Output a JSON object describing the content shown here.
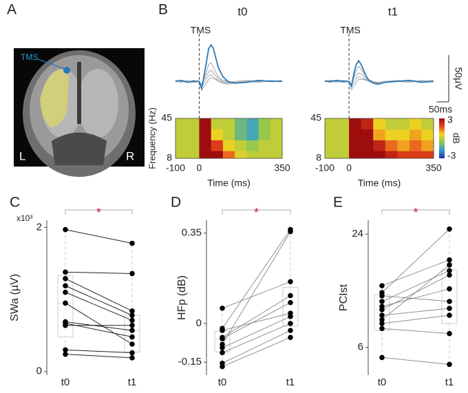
{
  "chart_data": [
    {
      "type": "image",
      "panel": "A",
      "annotation": "TMS",
      "labels": [
        "L",
        "R"
      ]
    },
    {
      "type": "line",
      "panel": "B",
      "title": "t0",
      "annotation": "TMS",
      "annotation_x": 0,
      "x": [
        -100,
        -75,
        -50,
        -25,
        0,
        10,
        20,
        30,
        40,
        50,
        60,
        70,
        80,
        100,
        120,
        150,
        200,
        250,
        300,
        350
      ],
      "xlim": [
        -100,
        350
      ],
      "ylim": [
        -30,
        45
      ],
      "series": [
        {
          "color": "#a8a8a8",
          "values": [
            1,
            0,
            0,
            -1,
            0,
            -10,
            -6,
            -2,
            2,
            4,
            3,
            2,
            0,
            -2,
            -3,
            -2,
            -1,
            0,
            0,
            1
          ]
        },
        {
          "color": "#a8a8a8",
          "values": [
            0,
            0,
            -1,
            1,
            0,
            -6,
            -2,
            3,
            6,
            7,
            5,
            3,
            1,
            -1,
            -2,
            -1,
            0,
            -1,
            1,
            0
          ]
        },
        {
          "color": "#a8a8a8",
          "values": [
            0,
            -1,
            1,
            0,
            0,
            -4,
            2,
            6,
            10,
            12,
            9,
            6,
            3,
            0,
            -1,
            0,
            1,
            0,
            0,
            0
          ]
        },
        {
          "color": "#a8a8a8",
          "values": [
            0,
            1,
            0,
            -1,
            0,
            -3,
            3,
            10,
            18,
            20,
            15,
            10,
            5,
            1,
            0,
            -1,
            0,
            1,
            0,
            0
          ]
        },
        {
          "color": "#2a78b8",
          "values": [
            0,
            1,
            -1,
            0,
            0,
            -8,
            5,
            20,
            35,
            39,
            35,
            25,
            15,
            5,
            0,
            -2,
            -1,
            1,
            0,
            0
          ]
        }
      ]
    },
    {
      "type": "line",
      "title": "t1",
      "annotation": "TMS",
      "annotation_x": 0,
      "x": [
        -100,
        -75,
        -50,
        -25,
        0,
        10,
        20,
        30,
        40,
        50,
        60,
        70,
        80,
        100,
        120,
        150,
        200,
        250,
        300,
        350
      ],
      "xlim": [
        -100,
        350
      ],
      "ylim": [
        -30,
        45
      ],
      "series": [
        {
          "color": "#a8a8a8",
          "values": [
            1,
            0,
            0,
            -1,
            0,
            -9,
            -5,
            -1,
            2,
            2,
            2,
            1,
            0,
            -2,
            -2,
            -1,
            0,
            0,
            0,
            1
          ]
        },
        {
          "color": "#a8a8a8",
          "values": [
            0,
            0,
            -1,
            1,
            0,
            -6,
            -1,
            3,
            5,
            4,
            3,
            2,
            0,
            -1,
            -2,
            -1,
            0,
            -1,
            1,
            0
          ]
        },
        {
          "color": "#a8a8a8",
          "values": [
            0,
            -1,
            1,
            0,
            0,
            -4,
            3,
            7,
            9,
            8,
            6,
            3,
            1,
            -1,
            -1,
            0,
            1,
            0,
            0,
            0
          ]
        },
        {
          "color": "#a8a8a8",
          "values": [
            0,
            1,
            0,
            -1,
            0,
            -3,
            5,
            12,
            16,
            13,
            9,
            5,
            2,
            0,
            -1,
            0,
            0,
            1,
            0,
            0
          ]
        },
        {
          "color": "#2a78b8",
          "values": [
            0,
            0,
            1,
            0,
            0,
            -5,
            8,
            18,
            22,
            18,
            12,
            6,
            2,
            -2,
            -3,
            -1,
            0,
            1,
            -1,
            0
          ]
        }
      ],
      "scale_bar": {
        "y_value": 50,
        "y_label": "50µV",
        "x_value": 50,
        "x_label": "50ms"
      }
    },
    {
      "type": "heatmap",
      "xlabel": "Time (ms)",
      "ylabel": "Frequency (Hz)",
      "xlim": [
        -100,
        350
      ],
      "ylim": [
        8,
        45
      ],
      "xticks": [
        -100,
        0,
        350
      ],
      "yticks": [
        45,
        8
      ],
      "xbins": [
        -100,
        0,
        50,
        100,
        150,
        200,
        250,
        300,
        350
      ],
      "ybins": [
        8,
        15,
        25,
        35,
        45
      ],
      "z": [
        [
          0,
          3,
          3,
          1.5,
          0.3,
          0,
          0,
          0
        ],
        [
          0,
          3,
          2,
          0.5,
          0,
          -0.5,
          0,
          0
        ],
        [
          0,
          3,
          0.5,
          0,
          -1,
          -1.5,
          -0.5,
          0
        ],
        [
          0,
          3,
          0,
          0,
          -1,
          -1.5,
          -0.5,
          0
        ]
      ],
      "zlim": [
        -3,
        3
      ],
      "colorscale": [
        "#1f2f9f",
        "#2e9bd6",
        "#8cc850",
        "#f5d21f",
        "#e8461e",
        "#9e0d0d"
      ]
    },
    {
      "type": "heatmap",
      "xlabel": "Time (ms)",
      "xlim": [
        -100,
        350
      ],
      "ylim": [
        8,
        45
      ],
      "xticks": [
        -100,
        0,
        350
      ],
      "yticks": [
        45,
        8
      ],
      "xbins": [
        -100,
        0,
        50,
        100,
        150,
        200,
        250,
        300,
        350
      ],
      "ybins": [
        8,
        15,
        25,
        35,
        45
      ],
      "z": [
        [
          0,
          3,
          3,
          3,
          2.5,
          2,
          2,
          2
        ],
        [
          0,
          3,
          3,
          2.5,
          1.5,
          1,
          1.5,
          1
        ],
        [
          0,
          3,
          3,
          1,
          0.5,
          0.5,
          1,
          0.5
        ],
        [
          0,
          3,
          2.5,
          0.5,
          0,
          0,
          0.5,
          0
        ]
      ],
      "zlim": [
        -3,
        3
      ],
      "colorscale": [
        "#1f2f9f",
        "#2e9bd6",
        "#8cc850",
        "#f5d21f",
        "#e8461e",
        "#9e0d0d"
      ],
      "colorbar": {
        "label": "dB",
        "ticks": [
          3,
          -3
        ]
      }
    },
    {
      "type": "paired",
      "panel": "C",
      "ylabel": "SWa (µV)",
      "multiplier": "x10³",
      "significance": "*",
      "significance_color": "#c0143c",
      "categories": [
        "t0",
        "t1"
      ],
      "ylim": [
        -0.05,
        2.1
      ],
      "yticks": [
        0,
        2
      ],
      "values": [
        [
          1.97,
          1.38,
          1.29,
          1.19,
          1.1,
          0.95,
          0.69,
          0.67,
          0.64,
          0.3,
          0.24
        ],
        [
          1.78,
          1.36,
          0.84,
          0.78,
          0.71,
          0.38,
          0.57,
          0.48,
          0.64,
          0.26,
          0.19
        ]
      ],
      "boxes": [
        {
          "low": 0.24,
          "q1": 0.48,
          "median": 0.95,
          "q3": 1.33,
          "high": 1.97
        },
        {
          "low": 0.19,
          "q1": 0.27,
          "median": 0.57,
          "q3": 0.78,
          "high": 1.78
        }
      ]
    },
    {
      "type": "paired",
      "panel": "D",
      "ylabel": "HFp (dB)",
      "significance": "*",
      "significance_color": "#c0143c",
      "categories": [
        "t0",
        "t1"
      ],
      "ylim": [
        -0.2,
        0.4
      ],
      "yticks": [
        -0.15,
        0,
        0.35
      ],
      "values": [
        [
          0.059,
          -0.019,
          -0.027,
          -0.054,
          -0.059,
          -0.081,
          -0.094,
          -0.113,
          -0.154,
          -0.167
        ],
        [
          0.162,
          0.364,
          0.04,
          0.108,
          0.081,
          0.356,
          0.027,
          0,
          -0.027,
          -0.054
        ]
      ],
      "boxes": [
        {
          "low": -0.167,
          "q1": -0.11,
          "median": -0.06,
          "q3": -0.03,
          "high": 0.059
        },
        {
          "low": -0.054,
          "q1": -0.01,
          "median": 0.03,
          "q3": 0.14,
          "high": 0.364
        }
      ]
    },
    {
      "type": "paired",
      "panel": "E",
      "ylabel": "PCIst",
      "significance": "*",
      "significance_color": "#c0143c",
      "categories": [
        "t0",
        "t1"
      ],
      "ylim": [
        1.6,
        26.2
      ],
      "yticks": [
        6,
        24
      ],
      "values": [
        [
          15.8,
          14.7,
          14.2,
          13.3,
          12.5,
          12.0,
          11.1,
          10.4,
          9.8,
          9.0,
          4.4
        ],
        [
          19.9,
          24.8,
          13.3,
          18.2,
          15.3,
          17.5,
          12.2,
          19.1,
          11.1,
          8.2,
          3.3
        ]
      ],
      "boxes": [
        {
          "low": 4.4,
          "q1": 8.7,
          "median": 12.0,
          "q3": 14.4,
          "high": 15.8
        },
        {
          "low": 3.3,
          "q1": 9.8,
          "median": 13.3,
          "q3": 18.3,
          "high": 24.8
        }
      ]
    }
  ]
}
